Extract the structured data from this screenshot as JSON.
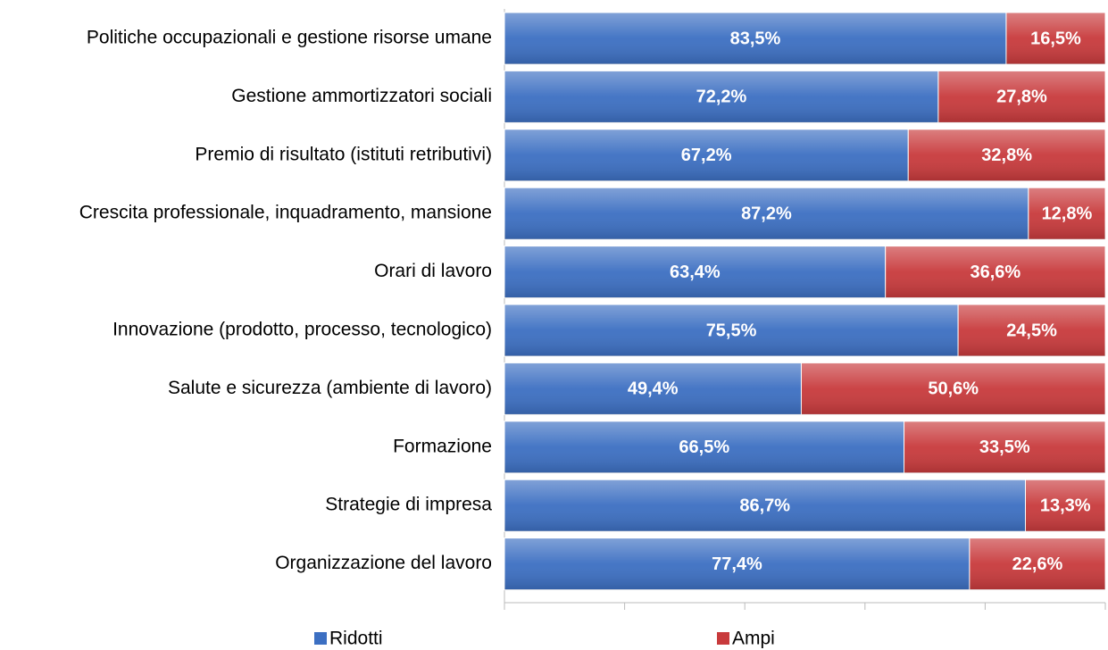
{
  "chart_data": {
    "type": "stacked_bar_horizontal",
    "categories": [
      "Politiche occupazionali e gestione risorse umane",
      "Gestione ammortizzatori sociali",
      "Premio di risultato (istituti retributivi)",
      "Crescita professionale, inquadramento, mansione",
      "Orari di lavoro",
      "Innovazione (prodotto, processo, tecnologico)",
      "Salute e sicurezza (ambiente di lavoro)",
      "Formazione",
      "Strategie di impresa",
      "Organizzazione del lavoro"
    ],
    "series": [
      {
        "name": "Ridotti",
        "color": "#3c6fc2",
        "values": [
          83.5,
          72.2,
          67.2,
          87.2,
          63.4,
          75.5,
          49.4,
          66.5,
          86.7,
          77.4
        ],
        "value_labels": [
          "83,5%",
          "72,2%",
          "67,2%",
          "87,2%",
          "63,4%",
          "75,5%",
          "49,4%",
          "66,5%",
          "86,7%",
          "77,4%"
        ]
      },
      {
        "name": "Ampi",
        "color": "#c83a3c",
        "values": [
          16.5,
          27.8,
          32.8,
          12.8,
          36.6,
          24.5,
          50.6,
          33.5,
          13.3,
          22.6
        ],
        "value_labels": [
          "16,5%",
          "27,8%",
          "32,8%",
          "12,8%",
          "36,6%",
          "24,5%",
          "50,6%",
          "33,5%",
          "13,3%",
          "22,6%"
        ]
      }
    ],
    "xlim": [
      0,
      100
    ],
    "xticks": [
      0,
      20,
      40,
      60,
      80,
      100
    ],
    "legend": "bottom"
  }
}
